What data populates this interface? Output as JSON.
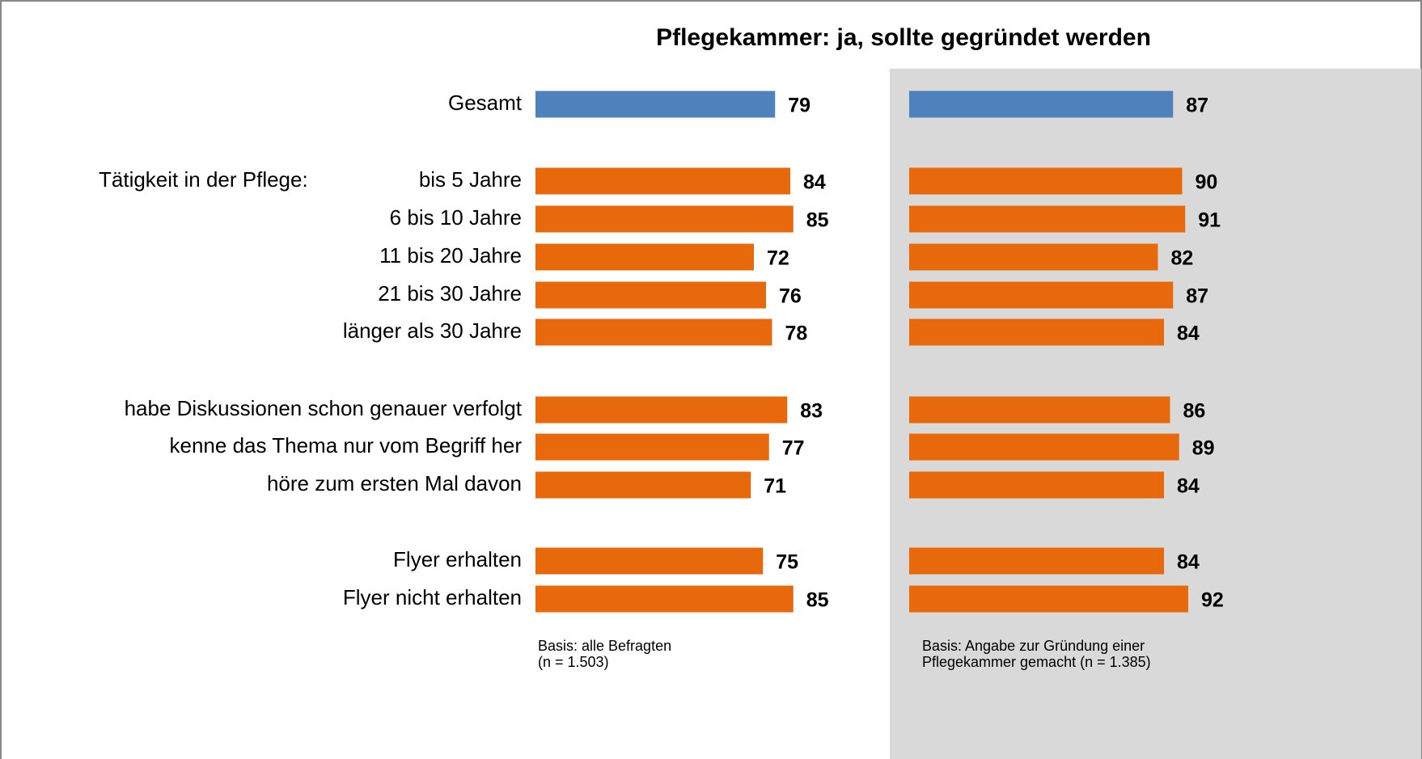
{
  "chart_data": {
    "type": "hbar",
    "title": "Pflegekammer: ja, sollte gegründet werden",
    "group_label": "Tätigkeit in der Pflege:",
    "categories": [
      "Gesamt",
      "bis 5 Jahre",
      "6 bis 10 Jahre",
      "11 bis 20 Jahre",
      "21 bis 30 Jahre",
      "länger als 30 Jahre",
      "habe Diskussionen schon genauer verfolgt",
      "kenne das Thema nur vom Begriff her",
      "höre zum ersten Mal davon",
      "Flyer erhalten",
      "Flyer nicht erhalten"
    ],
    "colors": [
      "#4f81bd",
      "#e8690c",
      "#e8690c",
      "#e8690c",
      "#e8690c",
      "#e8690c",
      "#e8690c",
      "#e8690c",
      "#e8690c",
      "#e8690c",
      "#e8690c"
    ],
    "xlim": [
      0,
      100
    ],
    "panels": [
      {
        "values": [
          79,
          84,
          85,
          72,
          76,
          78,
          83,
          77,
          71,
          75,
          85
        ],
        "note": [
          "Basis: alle Befragten",
          "(n = 1.503)"
        ]
      },
      {
        "values": [
          87,
          90,
          91,
          82,
          87,
          84,
          86,
          89,
          84,
          84,
          92
        ],
        "note": [
          "Basis: Angabe zur Gründung einer",
          "Pflegekammer gemacht  (n = 1.385)"
        ]
      }
    ]
  }
}
